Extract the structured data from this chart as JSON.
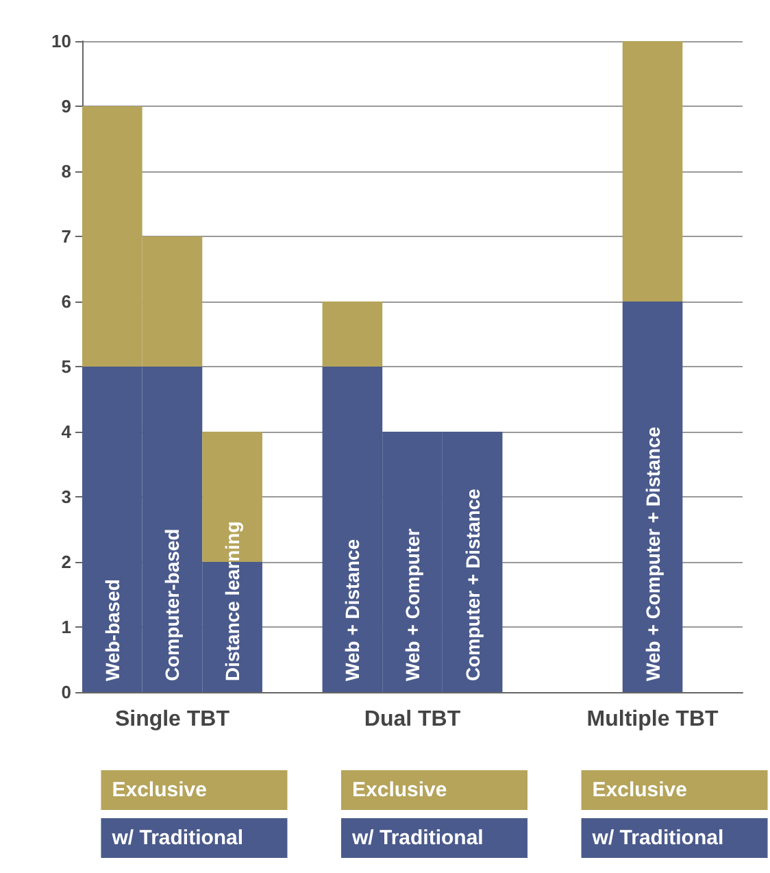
{
  "chart_data": {
    "type": "bar",
    "stacked": true,
    "categories": [
      "Web-based",
      "Computer-based",
      "Distance learning",
      null,
      "Web + Distance",
      "Web + Computer",
      "Computer + Distance",
      null,
      null,
      "Web + Computer + Distance",
      null
    ],
    "series": [
      {
        "name": "w/ Traditional",
        "color": "#4a5a8c",
        "values": [
          5,
          5,
          2,
          null,
          5,
          4,
          4,
          null,
          null,
          6,
          null
        ]
      },
      {
        "name": "Exclusive",
        "color": "#b5a45a",
        "values": [
          4,
          2,
          2,
          null,
          1,
          0,
          0,
          null,
          null,
          4,
          null
        ]
      }
    ],
    "annotations": [
      "Single TBT",
      "Dual TBT",
      "Multiple TBT"
    ],
    "ylim": [
      0,
      10
    ],
    "yticks": [
      0,
      1,
      2,
      3,
      4,
      5,
      6,
      7,
      8,
      9,
      10
    ],
    "grid": "y",
    "legend": "bottom"
  }
}
